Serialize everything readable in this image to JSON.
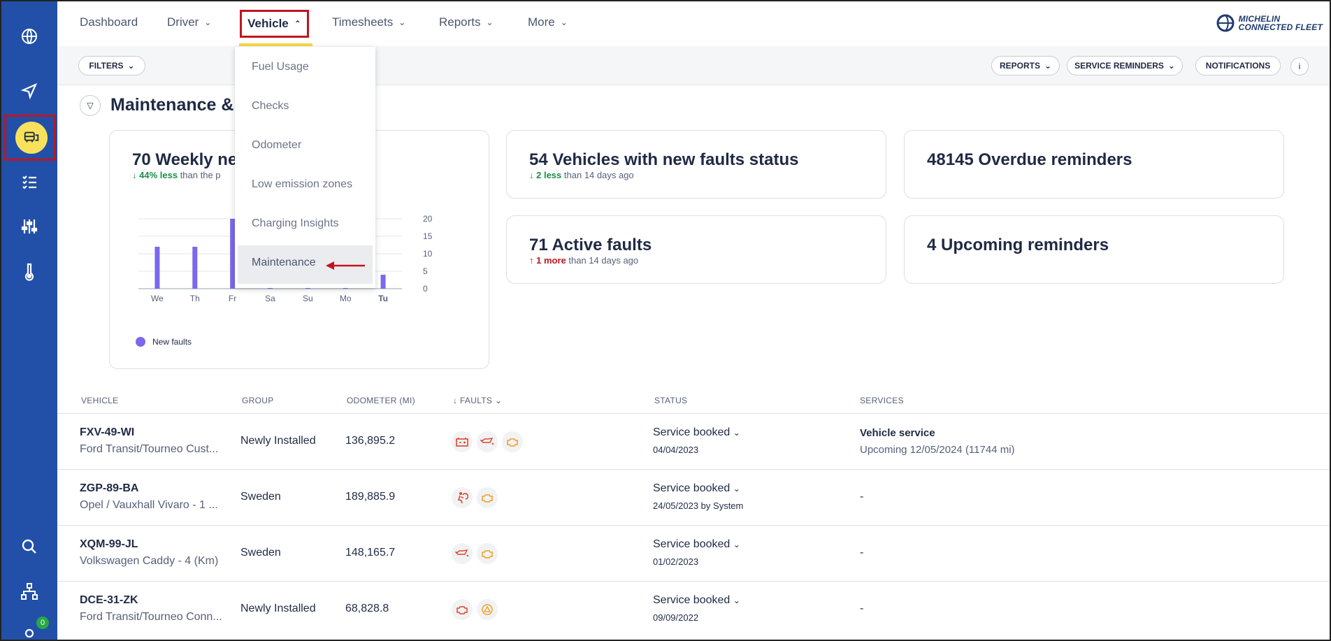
{
  "nav": {
    "items": [
      "Dashboard",
      "Driver",
      "Vehicle",
      "Timesheets",
      "Reports",
      "More"
    ],
    "active": "Vehicle"
  },
  "brand": {
    "line1": "MICHELIN",
    "line2": "CONNECTED FLEET"
  },
  "toolbar": {
    "filters": "FILTERS",
    "reports": "REPORTS",
    "service_reminders": "SERVICE REMINDERS",
    "notifications": "NOTIFICATIONS"
  },
  "section": {
    "title": "Maintenance & S"
  },
  "vehicle_menu": {
    "items": [
      "Fuel Usage",
      "Checks",
      "Odometer",
      "Low emission zones",
      "Charging Insights",
      "Maintenance"
    ],
    "selected": "Maintenance"
  },
  "cards": {
    "weekly": {
      "title": "70 Weekly ne",
      "delta": "44% less",
      "rest": "than the p"
    },
    "new_faults": {
      "title": "54 Vehicles with new faults status",
      "delta": "2 less",
      "rest": "than 14 days ago"
    },
    "overdue": {
      "title": "48145 Overdue reminders"
    },
    "active": {
      "title": "71 Active faults",
      "delta": "1 more",
      "rest": "than 14 days ago"
    },
    "upcoming": {
      "title": "4 Upcoming reminders"
    }
  },
  "chart_data": {
    "type": "bar",
    "categories": [
      "We",
      "Th",
      "Fr",
      "Sa",
      "Su",
      "Mo",
      "Tu"
    ],
    "series": [
      {
        "name": "New faults",
        "values": [
          12,
          12,
          20,
          1,
          1,
          1,
          4
        ]
      }
    ],
    "yticks": [
      0,
      5,
      10,
      15,
      20
    ],
    "ylim": [
      0,
      20
    ],
    "y_axis_side": "right",
    "grid": true,
    "legend": "bottom-left",
    "color": "#7b68ee"
  },
  "table": {
    "headers": {
      "vehicle": "VEHICLE",
      "group": "GROUP",
      "odometer": "ODOMETER (MI)",
      "faults": "FAULTS",
      "status": "STATUS",
      "services": "SERVICES"
    },
    "rows": [
      {
        "plate": "FXV-49-WI",
        "model": "Ford Transit/Tourneo Cust...",
        "group": "Newly Installed",
        "odometer": "136,895.2",
        "status": "Service booked",
        "status_date": "04/04/2023",
        "service_title": "Vehicle service",
        "service_sub": "Upcoming 12/05/2024 (11744 mi)"
      },
      {
        "plate": "ZGP-89-BA",
        "model": "Opel / Vauxhall Vivaro - 1 ...",
        "group": "Sweden",
        "odometer": "189,885.9",
        "status": "Service booked",
        "status_date": "24/05/2023 by System",
        "service_title": "-",
        "service_sub": ""
      },
      {
        "plate": "XQM-99-JL",
        "model": "Volkswagen Caddy - 4 (Km)",
        "group": "Sweden",
        "odometer": "148,165.7",
        "status": "Service booked",
        "status_date": "01/02/2023",
        "service_title": "-",
        "service_sub": ""
      },
      {
        "plate": "DCE-31-ZK",
        "model": "Ford Transit/Tourneo Conn...",
        "group": "Newly Installed",
        "odometer": "68,828.8",
        "status": "Service booked",
        "status_date": "09/09/2022",
        "service_title": "-",
        "service_sub": ""
      }
    ]
  },
  "sidebar": {
    "badge_count": "0"
  },
  "colors": {
    "sidebar": "#2250a8",
    "accent_yellow": "#f8e25c",
    "highlight_red": "#c0151f",
    "fault_red": "#e0452b",
    "fault_orange": "#f0a020",
    "bar": "#7b68ee"
  }
}
